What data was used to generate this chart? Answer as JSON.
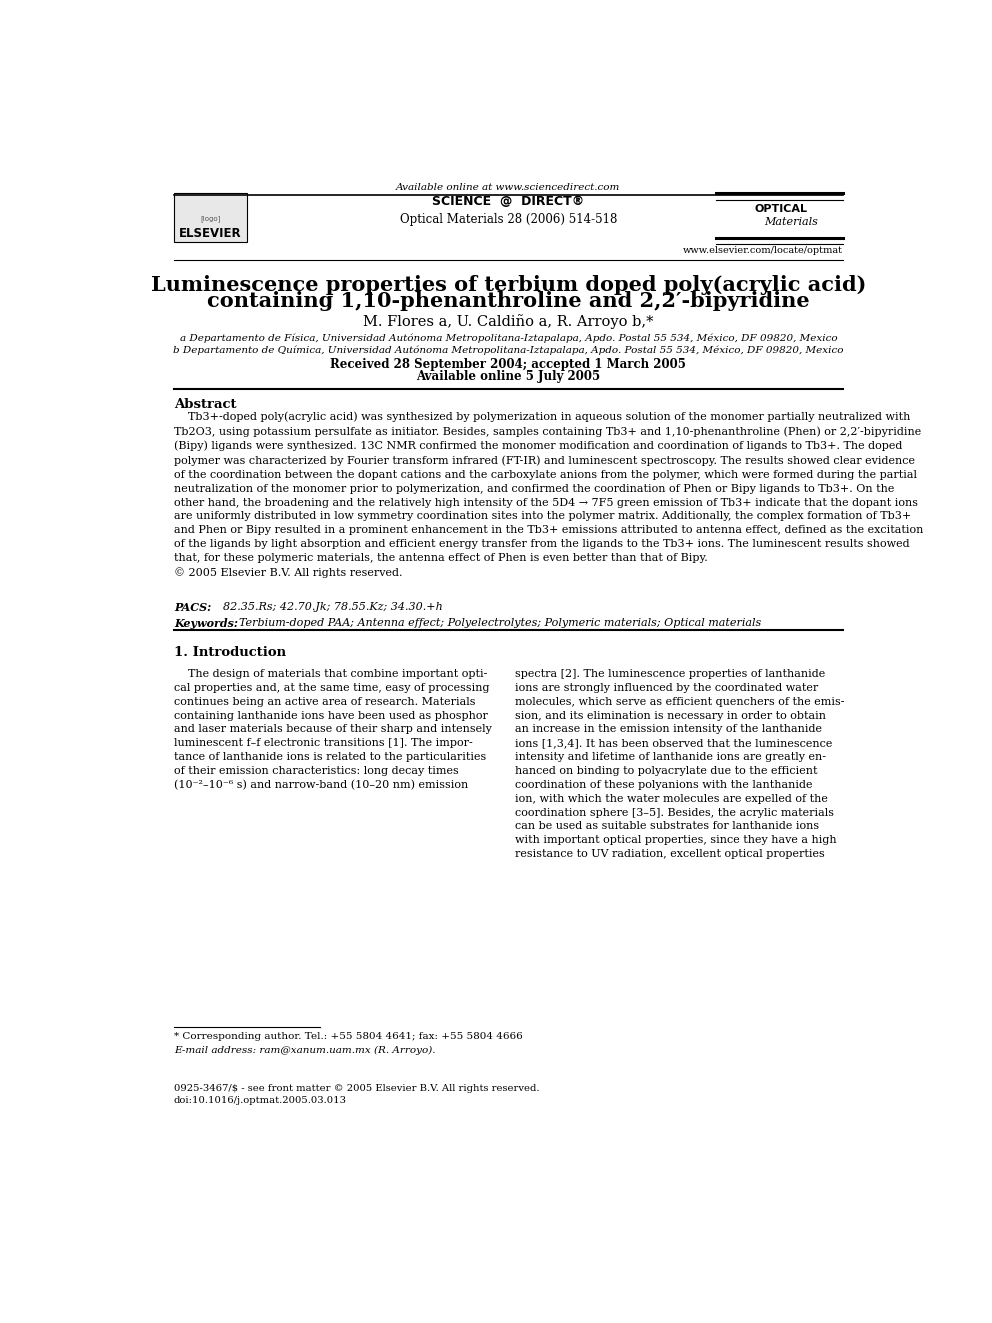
{
  "page_width": 9.92,
  "page_height": 13.23,
  "bg_color": "#ffffff",
  "header_available": "Available online at www.sciencedirect.com",
  "header_sciencedirect": "SCIENCE @ DIRECT",
  "header_journal": "Optical Materials 28 (2006) 514-518",
  "header_elsevier": "ELSEVIER",
  "header_website": "www.elsevier.com/locate/optmat",
  "title_line1": "Luminescence properties of terbium doped poly(acrylic acid)",
  "title_line2": "containing 1,10-phenanthroline and 2,2′-bipyridine",
  "authors": "M. Flores a, U. Caldiño a, R. Arroyo b,*",
  "affil_a": "a Departamento de Física, Universidad Autónoma Metropolitana-Iztapalapa, Apdo. Postal 55 534, México, DF 09820, Mexico",
  "affil_b": "b Departamento de Química, Universidad Autónoma Metropolitana-Iztapalapa, Apdo. Postal 55 534, México, DF 09820, Mexico",
  "received": "Received 28 September 2004; accepted 1 March 2005",
  "available_online": "Available online 5 July 2005",
  "abstract_title": "Abstract",
  "abstract_body": "    Tb3+-doped poly(acrylic acid) was synthesized by polymerization in aqueous solution of the monomer partially neutralized with\nTb2O3, using potassium persulfate as initiator. Besides, samples containing Tb3+ and 1,10-phenanthroline (Phen) or 2,2′-bipyridine\n(Bipy) ligands were synthesized. 13C NMR confirmed the monomer modification and coordination of ligands to Tb3+. The doped\npolymer was characterized by Fourier transform infrared (FT-IR) and luminescent spectroscopy. The results showed clear evidence\nof the coordination between the dopant cations and the carboxylate anions from the polymer, which were formed during the partial\nneutralization of the monomer prior to polymerization, and confirmed the coordination of Phen or Bipy ligands to Tb3+. On the\nother hand, the broadening and the relatively high intensity of the 5D4 → 7F5 green emission of Tb3+ indicate that the dopant ions\nare uniformly distributed in low symmetry coordination sites into the polymer matrix. Additionally, the complex formation of Tb3+\nand Phen or Bipy resulted in a prominent enhancement in the Tb3+ emissions attributed to antenna effect, defined as the excitation\nof the ligands by light absorption and efficient energy transfer from the ligands to the Tb3+ ions. The luminescent results showed\nthat, for these polymeric materials, the antenna effect of Phen is even better than that of Bipy.\n© 2005 Elsevier B.V. All rights reserved.",
  "pacs_label": "PACS:",
  "pacs_text": "  82.35.Rs; 42.70.Jk; 78.55.Kz; 34.30.+h",
  "keywords_label": "Keywords:",
  "keywords_text": "  Terbium-doped PAA; Antenna effect; Polyelectrolytes; Polymeric materials; Optical materials",
  "section1_title": "1. Introduction",
  "col1_text": "    The design of materials that combine important opti-\ncal properties and, at the same time, easy of processing\ncontinues being an active area of research. Materials\ncontaining lanthanide ions have been used as phosphor\nand laser materials because of their sharp and intensely\nluminescent f–f electronic transitions [1]. The impor-\ntance of lanthanide ions is related to the particularities\nof their emission characteristics: long decay times\n(10⁻²–10⁻⁶ s) and narrow-band (10–20 nm) emission",
  "col2_text": "spectra [2]. The luminescence properties of lanthanide\nions are strongly influenced by the coordinated water\nmolecules, which serve as efficient quenchers of the emis-\nsion, and its elimination is necessary in order to obtain\nan increase in the emission intensity of the lanthanide\nions [1,3,4]. It has been observed that the luminescence\nintensity and lifetime of lanthanide ions are greatly en-\nhanced on binding to polyacrylate due to the efficient\ncoordination of these polyanions with the lanthanide\nion, with which the water molecules are expelled of the\ncoordination sphere [3–5]. Besides, the acrylic materials\ncan be used as suitable substrates for lanthanide ions\nwith important optical properties, since they have a high\nresistance to UV radiation, excellent optical properties",
  "footnote_line": "* Corresponding author. Tel.: +55 5804 4641; fax: +55 5804 4666",
  "footnote_email": "E-mail address: ram@xanum.uam.mx (R. Arroyo).",
  "footer_text": "0925-3467/$ - see front matter © 2005 Elsevier B.V. All rights reserved.\ndoi:10.1016/j.optmat.2005.03.013"
}
